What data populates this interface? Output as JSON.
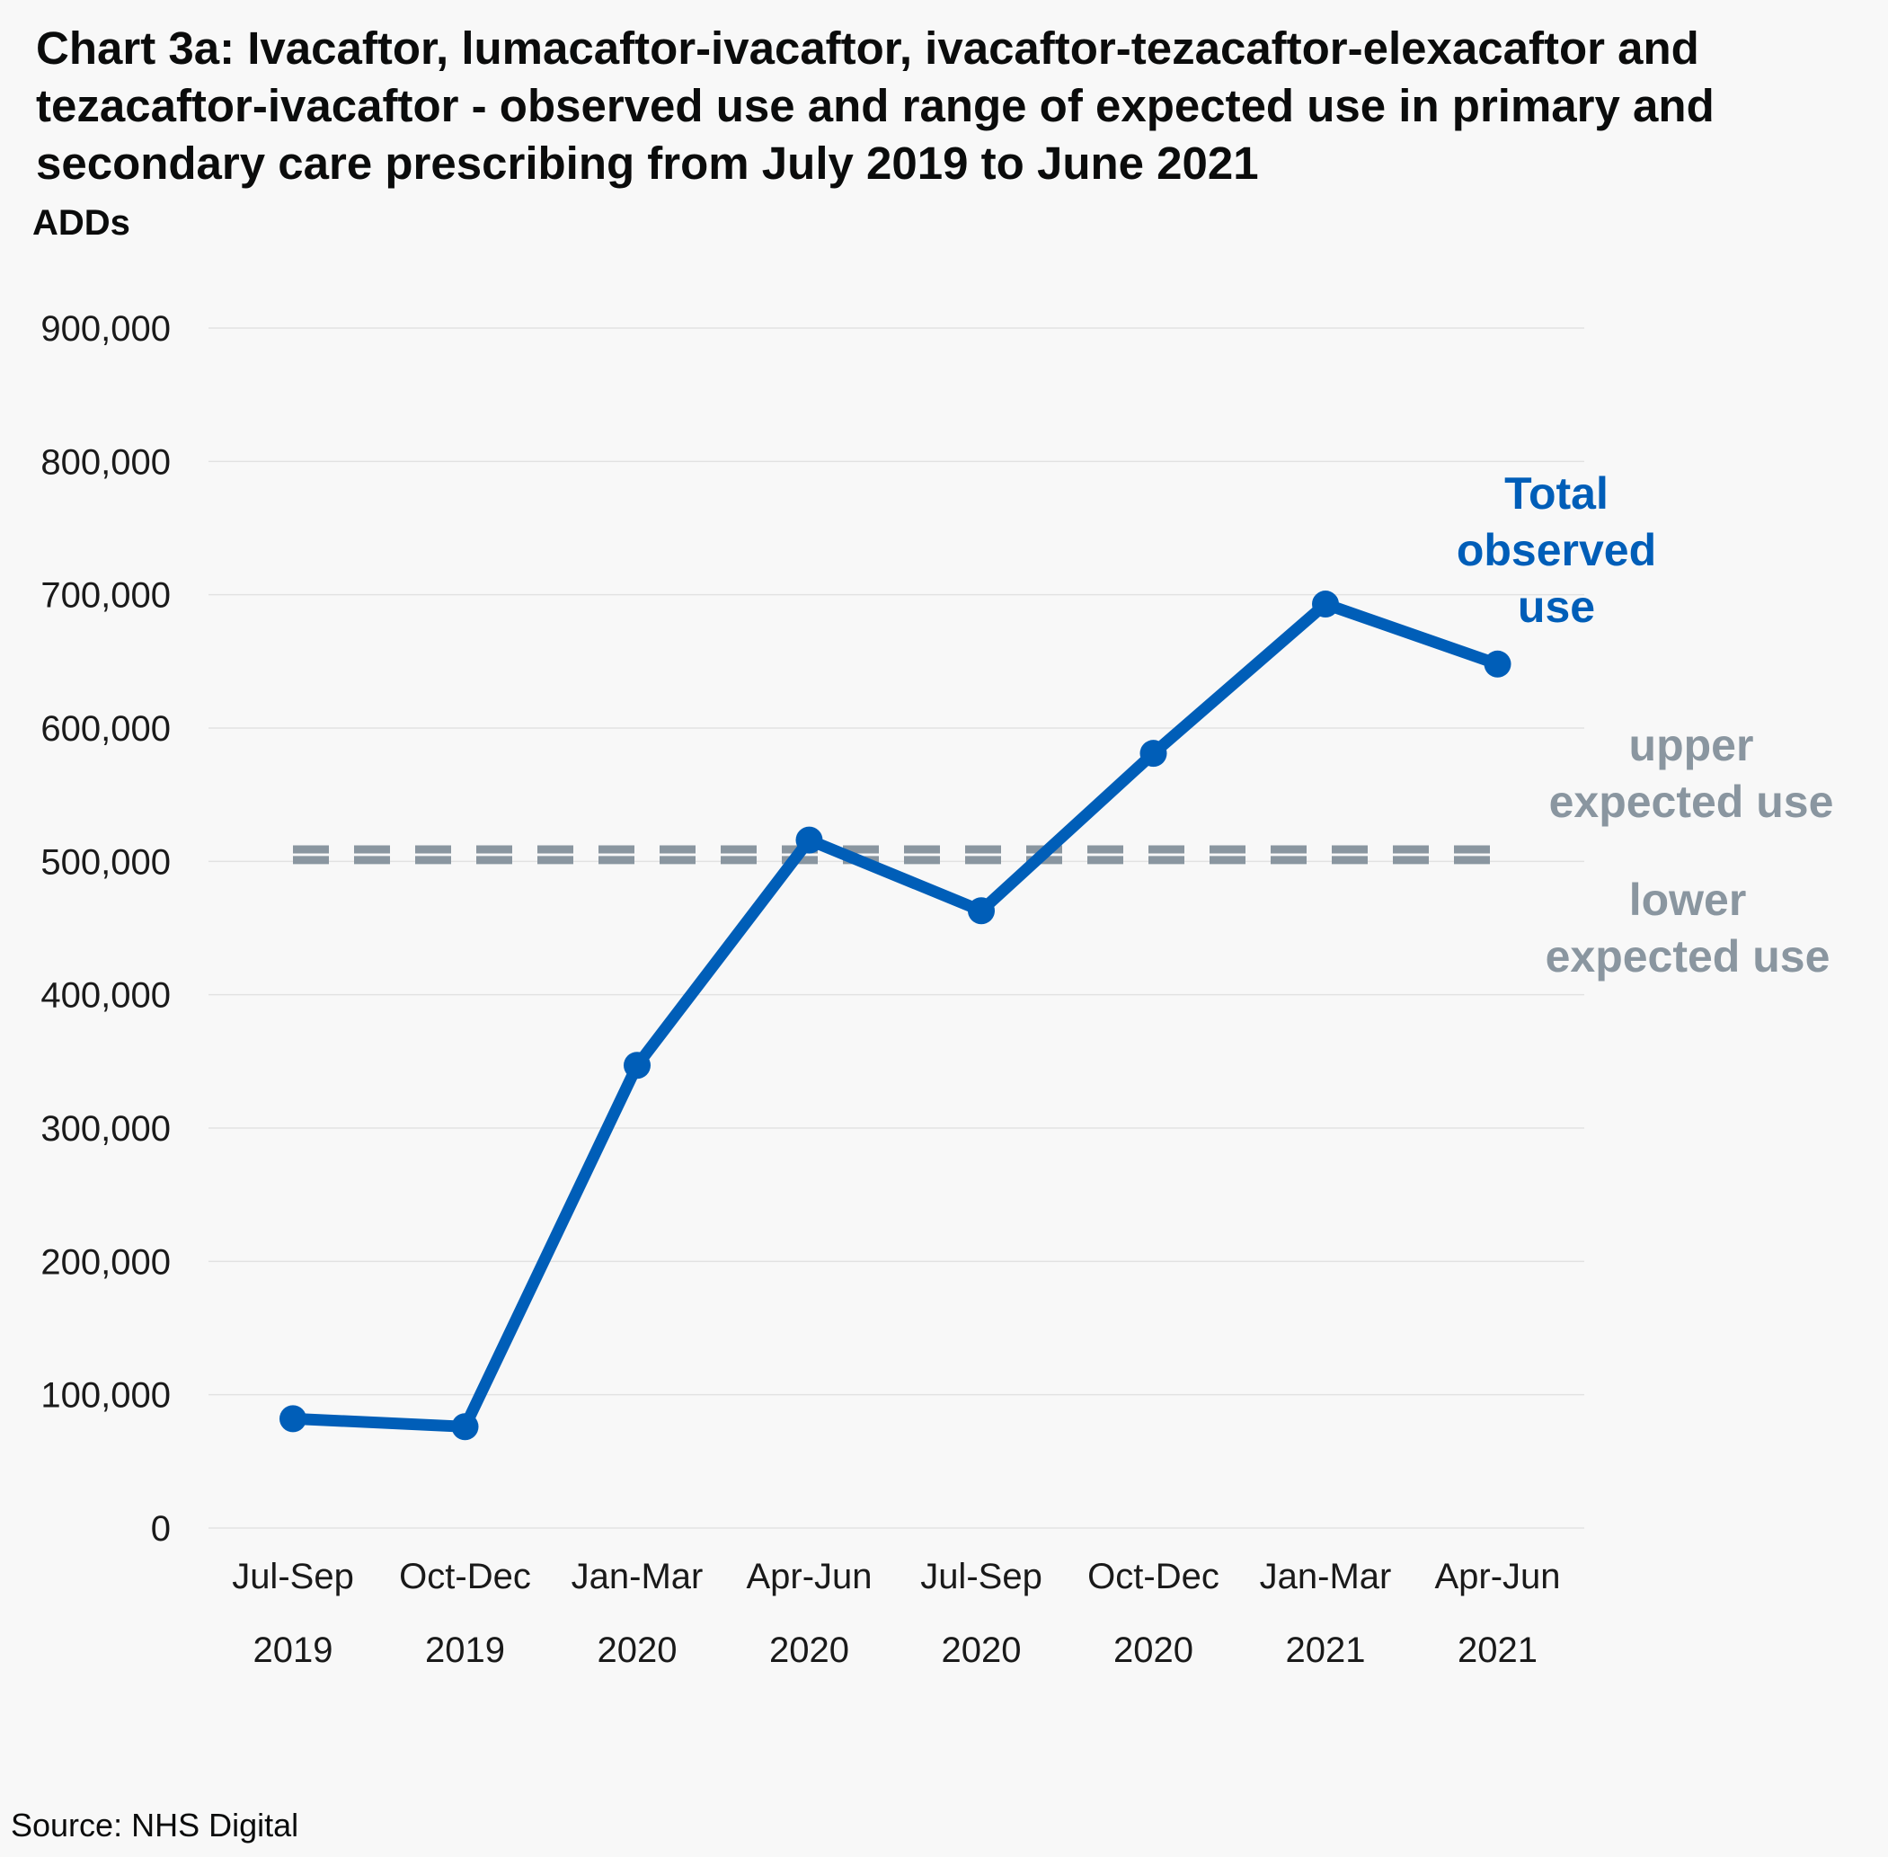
{
  "title": "Chart 3a: Ivacaftor, lumacaftor-ivacaftor, ivacaftor-tezacaftor-elexacaftor and tezacaftor-ivacaftor - observed use and range of expected use in primary and secondary care prescribing from July 2019 to June 2021",
  "source": "Source: NHS Digital",
  "colors": {
    "observed": "#005eb8",
    "expected": "#8a96a0",
    "grid": "#e2e2e2",
    "background": "#f8f8f8"
  },
  "chart_data": {
    "type": "line",
    "ylabel": "ADDs",
    "ylim": [
      0,
      900000
    ],
    "yticks": [
      0,
      100000,
      200000,
      300000,
      400000,
      500000,
      600000,
      700000,
      800000,
      900000
    ],
    "ytick_labels": [
      "0",
      "100,000",
      "200,000",
      "300,000",
      "400,000",
      "500,000",
      "600,000",
      "700,000",
      "800,000",
      "900,000"
    ],
    "grid": true,
    "categories": [
      [
        "Jul-Sep",
        "2019"
      ],
      [
        "Oct-Dec",
        "2019"
      ],
      [
        "Jan-Mar",
        "2020"
      ],
      [
        "Apr-Jun",
        "2020"
      ],
      [
        "Jul-Sep",
        "2020"
      ],
      [
        "Oct-Dec",
        "2020"
      ],
      [
        "Jan-Mar",
        "2021"
      ],
      [
        "Apr-Jun",
        "2021"
      ]
    ],
    "series": [
      {
        "label_lines": [
          "Total",
          "observed",
          "use"
        ],
        "style": "solid-markers",
        "values": [
          82000,
          76000,
          347000,
          516000,
          463000,
          581000,
          693000,
          648000
        ]
      },
      {
        "label_lines": [
          "upper",
          "expected use"
        ],
        "style": "dashed",
        "values": [
          509000,
          509000,
          509000,
          509000,
          509000,
          509000,
          509000,
          509000
        ]
      },
      {
        "label_lines": [
          "lower",
          "expected use"
        ],
        "style": "dashed",
        "values": [
          501000,
          501000,
          501000,
          501000,
          501000,
          501000,
          501000,
          501000
        ]
      }
    ]
  }
}
